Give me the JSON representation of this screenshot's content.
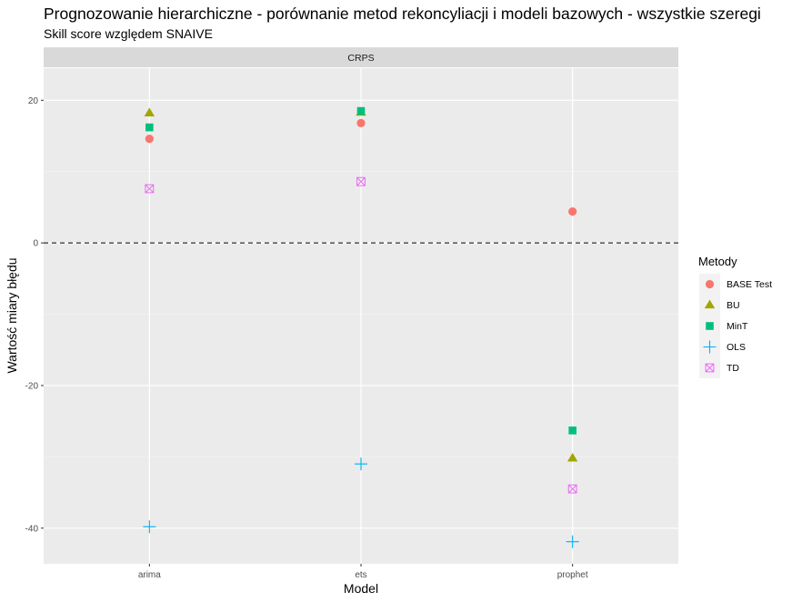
{
  "chart_data": {
    "type": "scatter",
    "title": "Prognozowanie hierarchiczne - porównanie metod rekoncyliacji i modeli bazowych - wszystkie szeregi",
    "subtitle": "Skill score względem SNAIVE",
    "facet_label": "CRPS",
    "xlabel": "Model",
    "ylabel": "Wartość miary błędu",
    "categories": [
      "arima",
      "ets",
      "prophet"
    ],
    "ylim": [
      -45,
      24.5
    ],
    "yticks": [
      -40,
      -20,
      0,
      20
    ],
    "reference_line": 0,
    "grid": true,
    "legend": {
      "title": "Metody",
      "position": "right"
    },
    "series": [
      {
        "name": "BASE Test",
        "shape": "circle",
        "color": "#F8766D",
        "values": [
          14.6,
          16.8,
          4.4
        ]
      },
      {
        "name": "BU",
        "shape": "triangle",
        "color": "#A3A500",
        "values": [
          18.2,
          18.3,
          -30.2
        ]
      },
      {
        "name": "MinT",
        "shape": "square",
        "color": "#00BF7D",
        "values": [
          16.2,
          18.5,
          -26.3
        ]
      },
      {
        "name": "OLS",
        "shape": "plus",
        "color": "#00B0F6",
        "values": [
          -39.8,
          -31.0,
          -41.9
        ]
      },
      {
        "name": "TD",
        "shape": "boxx",
        "color": "#E76BF3",
        "values": [
          7.6,
          8.6,
          -34.5
        ]
      }
    ]
  }
}
